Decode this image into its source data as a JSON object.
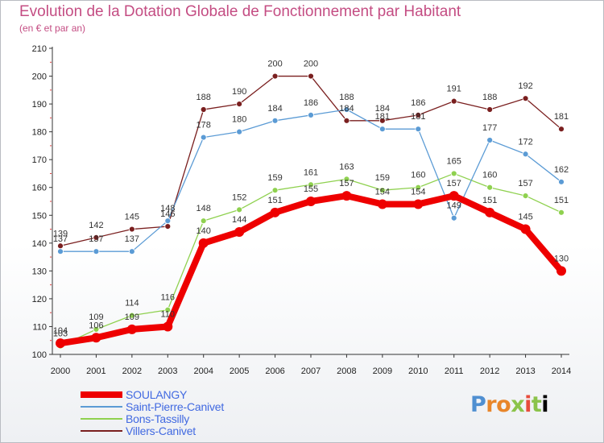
{
  "title": "Evolution de la Dotation Globale de Fonctionnement par Habitant",
  "subtitle": "(en € et par an)",
  "logo": "Proxiti",
  "chart_data": {
    "type": "line",
    "title": "Evolution de la Dotation Globale de Fonctionnement par Habitant",
    "subtitle": "(en € et par an)",
    "xlabel": "",
    "ylabel": "",
    "ylim": [
      100,
      210
    ],
    "yticks": [
      100,
      110,
      120,
      130,
      140,
      150,
      160,
      170,
      180,
      190,
      200,
      210
    ],
    "x": [
      "2000",
      "2001",
      "2002",
      "2003",
      "2004",
      "2005",
      "2006",
      "2007",
      "2008",
      "2009",
      "2010",
      "2011",
      "2012",
      "2013",
      "2014"
    ],
    "grid": false,
    "legend": "bottom-left",
    "series": [
      {
        "name": "SOULANGY",
        "color": "#ee0000",
        "values": [
          104,
          106,
          109,
          110,
          140,
          144,
          151,
          155,
          157,
          154,
          154,
          157,
          151,
          145,
          130
        ]
      },
      {
        "name": "Saint-Pierre-Canivet",
        "color": "#5b9bd5",
        "values": [
          137,
          137,
          137,
          148,
          178,
          180,
          184,
          186,
          188,
          181,
          181,
          149,
          177,
          172,
          162
        ]
      },
      {
        "name": "Bons-Tassilly",
        "color": "#8fd14f",
        "values": [
          103,
          109,
          114,
          116,
          148,
          152,
          159,
          161,
          163,
          159,
          160,
          165,
          160,
          157,
          151
        ]
      },
      {
        "name": "Villers-Canivet",
        "color": "#7a1f1f",
        "values": [
          139,
          142,
          145,
          146,
          188,
          190,
          200,
          200,
          184,
          184,
          186,
          191,
          188,
          192,
          181
        ]
      }
    ]
  }
}
